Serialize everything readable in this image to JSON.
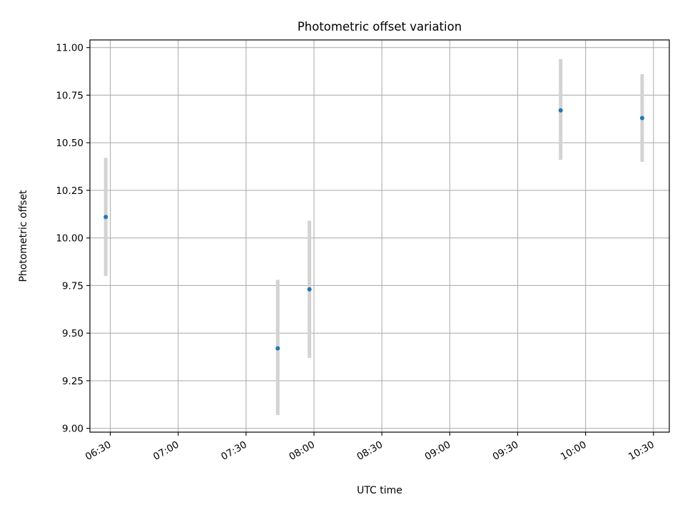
{
  "colors": {
    "point": "#1f77b4",
    "errorbar": "#d3d3d3",
    "grid": "#b0b0b0",
    "axes": "#000000",
    "background": "#ffffff"
  },
  "chart_data": {
    "type": "scatter",
    "title": "Photometric offset variation",
    "xlabel": "UTC time",
    "ylabel": "Photometric offset",
    "x_axis": "time",
    "xlim": [
      "06:21",
      "10:37"
    ],
    "ylim": [
      8.98,
      11.04
    ],
    "grid": true,
    "legend": "none",
    "x_ticks": [
      "06:30",
      "07:00",
      "07:30",
      "08:00",
      "08:30",
      "09:00",
      "09:30",
      "10:00",
      "10:30"
    ],
    "y_ticks": [
      "9.00",
      "9.25",
      "9.50",
      "9.75",
      "10.00",
      "10.25",
      "10.50",
      "10.75",
      "11.00"
    ],
    "points": [
      {
        "x": "06:28",
        "y": 10.11,
        "y_low": 9.8,
        "y_high": 10.42
      },
      {
        "x": "07:44",
        "y": 9.42,
        "y_low": 9.07,
        "y_high": 9.78
      },
      {
        "x": "07:58",
        "y": 9.73,
        "y_low": 9.37,
        "y_high": 10.09
      },
      {
        "x": "09:49",
        "y": 10.67,
        "y_low": 10.41,
        "y_high": 10.94
      },
      {
        "x": "10:25",
        "y": 10.63,
        "y_low": 10.4,
        "y_high": 10.86
      }
    ]
  }
}
